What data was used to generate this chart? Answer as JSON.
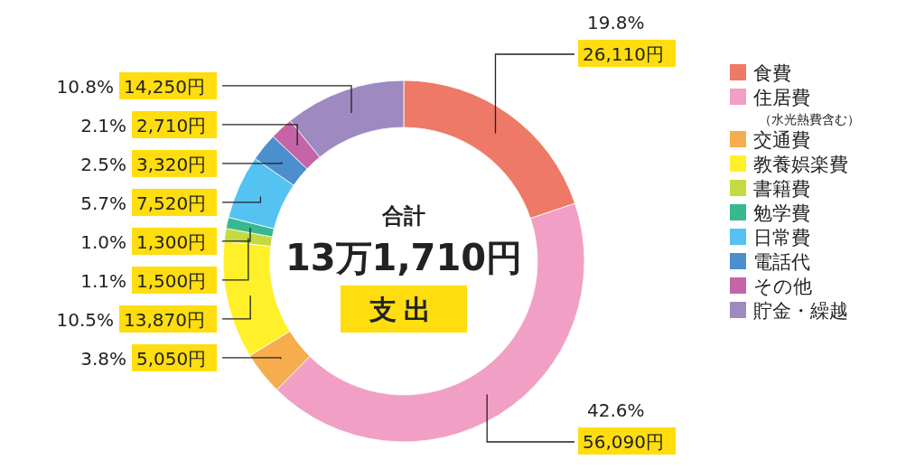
{
  "chart_data": {
    "type": "donut",
    "title": "合計",
    "subtitle": "13万1,710円",
    "annotations": [
      "支出"
    ],
    "categories": [
      "食費",
      "住居費（水光熱費含む）",
      "交通費",
      "教養娯楽費",
      "書籍費",
      "勉学費",
      "日常費",
      "電話代",
      "その他",
      "貯金・繰越"
    ],
    "values": [
      26110,
      56090,
      5050,
      13870,
      1500,
      1300,
      7520,
      3320,
      2710,
      14250
    ],
    "value_labels": [
      "19.8%\n26,110円",
      "42.6%\n56,090円",
      "3.8%\n5,050円",
      "10.5%\n13,870円",
      "1.1%\n1,500円",
      "1.0%\n1,300円",
      "5.7%\n7,520円",
      "2.5%\n3,320円",
      "2.1%\n2,710円",
      "10.8%\n14,250円"
    ],
    "colors": [
      "#ee7967",
      "#f19fc4",
      "#f5ad4e",
      "#fff02a",
      "#c5d940",
      "#37b88f",
      "#54c3f1",
      "#4b8fcf",
      "#c565a8",
      "#9e89c1"
    ],
    "legend": "right"
  }
}
